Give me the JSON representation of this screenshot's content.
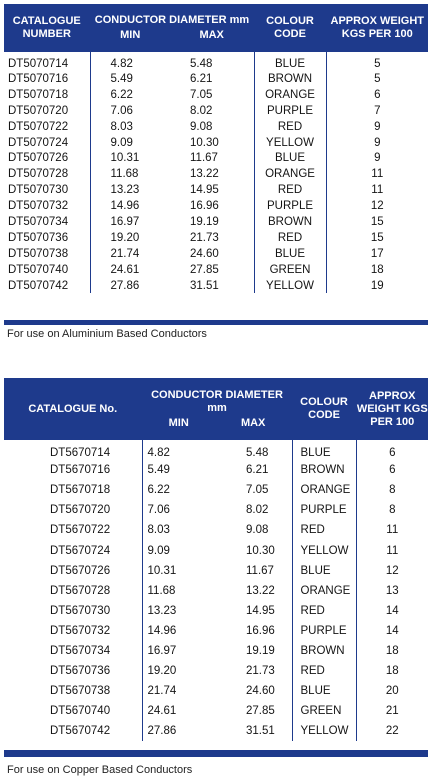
{
  "table1": {
    "headers": {
      "catalogue": "CATALOGUE NUMBER",
      "diameter": "CONDUCTOR DIAMETER mm",
      "min": "MIN",
      "max": "MAX",
      "colour": "COLOUR CODE",
      "weight": "APPROX WEIGHT KGS PER 100"
    },
    "rows": [
      {
        "catalogue": "DT5070714",
        "min": "4.82",
        "max": "5.48",
        "colour": "BLUE",
        "weight": "5"
      },
      {
        "catalogue": "DT5070716",
        "min": "5.49",
        "max": "6.21",
        "colour": "BROWN",
        "weight": "5"
      },
      {
        "catalogue": "DT5070718",
        "min": "6.22",
        "max": "7.05",
        "colour": "ORANGE",
        "weight": "6"
      },
      {
        "catalogue": "DT5070720",
        "min": "7.06",
        "max": "8.02",
        "colour": "PURPLE",
        "weight": "7"
      },
      {
        "catalogue": "DT5070722",
        "min": "8.03",
        "max": "9.08",
        "colour": "RED",
        "weight": "9"
      },
      {
        "catalogue": "DT5070724",
        "min": "9.09",
        "max": "10.30",
        "colour": "YELLOW",
        "weight": "9"
      },
      {
        "catalogue": "DT5070726",
        "min": "10.31",
        "max": "11.67",
        "colour": "BLUE",
        "weight": "9"
      },
      {
        "catalogue": "DT5070728",
        "min": "11.68",
        "max": "13.22",
        "colour": "ORANGE",
        "weight": "11"
      },
      {
        "catalogue": "DT5070730",
        "min": "13.23",
        "max": "14.95",
        "colour": "RED",
        "weight": "11"
      },
      {
        "catalogue": "DT5070732",
        "min": "14.96",
        "max": "16.96",
        "colour": "PURPLE",
        "weight": "12"
      },
      {
        "catalogue": "DT5070734",
        "min": "16.97",
        "max": "19.19",
        "colour": "BROWN",
        "weight": "15"
      },
      {
        "catalogue": "DT5070736",
        "min": "19.20",
        "max": "21.73",
        "colour": "RED",
        "weight": "15"
      },
      {
        "catalogue": "DT5070738",
        "min": "21.74",
        "max": "24.60",
        "colour": "BLUE",
        "weight": "17"
      },
      {
        "catalogue": "DT5070740",
        "min": "24.61",
        "max": "27.85",
        "colour": "GREEN",
        "weight": "18"
      },
      {
        "catalogue": "DT5070742",
        "min": "27.86",
        "max": "31.51",
        "colour": "YELLOW",
        "weight": "19"
      }
    ],
    "note": "For use on Aluminium Based Conductors"
  },
  "table2": {
    "headers": {
      "catalogue": "CATALOGUE No.",
      "diameter": "CONDUCTOR DIAMETER mm",
      "min": "MIN",
      "max": "MAX",
      "colour": "COLOUR CODE",
      "weight": "APPROX WEIGHT KGS PER 100"
    },
    "rows": [
      {
        "catalogue": "DT5670714",
        "min": "4.82",
        "max": "5.48",
        "colour": "BLUE",
        "weight": "6"
      },
      {
        "catalogue": "DT5670716",
        "min": "5.49",
        "max": "6.21",
        "colour": "BROWN",
        "weight": "6"
      },
      {
        "catalogue": "DT5670718",
        "min": "6.22",
        "max": "7.05",
        "colour": "ORANGE",
        "weight": "8"
      },
      {
        "catalogue": "DT5670720",
        "min": "7.06",
        "max": "8.02",
        "colour": "PURPLE",
        "weight": "8"
      },
      {
        "catalogue": "DT5670722",
        "min": "8.03",
        "max": "9.08",
        "colour": "RED",
        "weight": "11"
      },
      {
        "catalogue": "DT5670724",
        "min": "9.09",
        "max": "10.30",
        "colour": "YELLOW",
        "weight": "11"
      },
      {
        "catalogue": "DT5670726",
        "min": "10.31",
        "max": "11.67",
        "colour": "BLUE",
        "weight": "12"
      },
      {
        "catalogue": "DT5670728",
        "min": "11.68",
        "max": "13.22",
        "colour": "ORANGE",
        "weight": "13"
      },
      {
        "catalogue": "DT5670730",
        "min": "13.23",
        "max": "14.95",
        "colour": "RED",
        "weight": "14"
      },
      {
        "catalogue": "DT5670732",
        "min": "14.96",
        "max": "16.96",
        "colour": "PURPLE",
        "weight": "14"
      },
      {
        "catalogue": "DT5670734",
        "min": "16.97",
        "max": "19.19",
        "colour": "BROWN",
        "weight": "18"
      },
      {
        "catalogue": "DT5670736",
        "min": "19.20",
        "max": "21.73",
        "colour": "RED",
        "weight": "18"
      },
      {
        "catalogue": "DT5670738",
        "min": "21.74",
        "max": "24.60",
        "colour": "BLUE",
        "weight": "20"
      },
      {
        "catalogue": "DT5670740",
        "min": "24.61",
        "max": "27.85",
        "colour": "GREEN",
        "weight": "21"
      },
      {
        "catalogue": "DT5670742",
        "min": "27.86",
        "max": "31.51",
        "colour": "YELLOW",
        "weight": "22"
      }
    ],
    "note": "For use on Copper Based Conductors"
  },
  "colors": {
    "header_bg": "#1e3a8c",
    "header_text": "#ffffff",
    "body_text": "#141414"
  }
}
